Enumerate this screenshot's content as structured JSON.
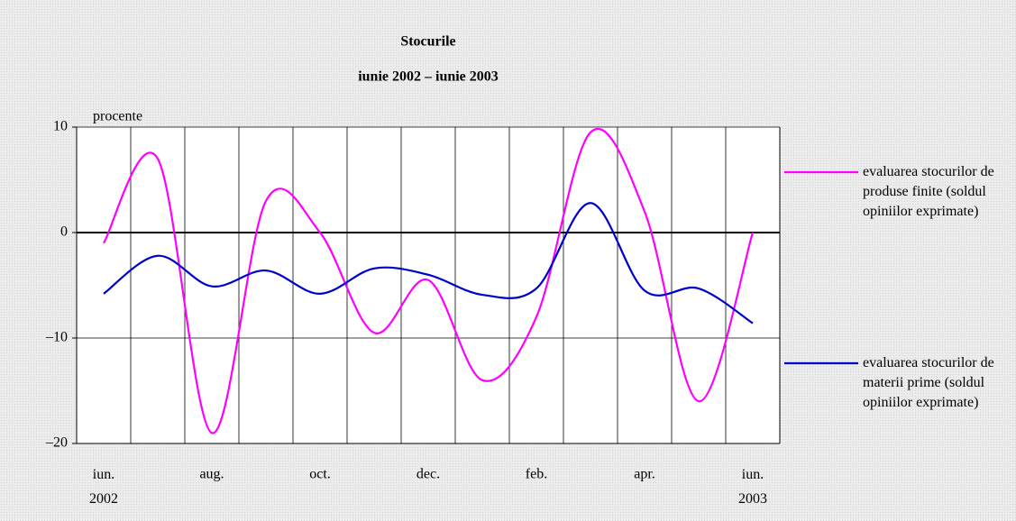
{
  "chart_data": {
    "type": "line",
    "title": "Stocurile",
    "subtitle": "iunie 2002 – iunie 2003",
    "y_label": "procente",
    "categories": [
      "iun. 2002",
      null,
      "aug.",
      null,
      "oct.",
      null,
      "dec.",
      null,
      "feb.",
      null,
      "apr.",
      null,
      "iun. 2003"
    ],
    "series": [
      {
        "name": "evaluarea stocurilor de produse finite (soldul opiniilor exprimate)",
        "color": "#ff00ff",
        "values": [
          -1,
          7,
          -19,
          3,
          0,
          -9.5,
          -4.5,
          -14,
          -8,
          9.5,
          2,
          -16,
          0
        ]
      },
      {
        "name": "evaluarea stocurilor de materii prime (soldul opiniilor exprimate)",
        "color": "#0000cc",
        "values": [
          -5.8,
          -2.2,
          -5.1,
          -3.6,
          -5.8,
          -3.4,
          -4,
          -5.9,
          -5.3,
          2.8,
          -5.5,
          -5.3,
          -8.6
        ]
      }
    ],
    "ylim": [
      -20,
      10
    ],
    "yticks": [
      10,
      0,
      {
        "value": -10,
        "label": "–10"
      },
      {
        "value": -20,
        "label": "–20"
      }
    ],
    "grid": true
  }
}
